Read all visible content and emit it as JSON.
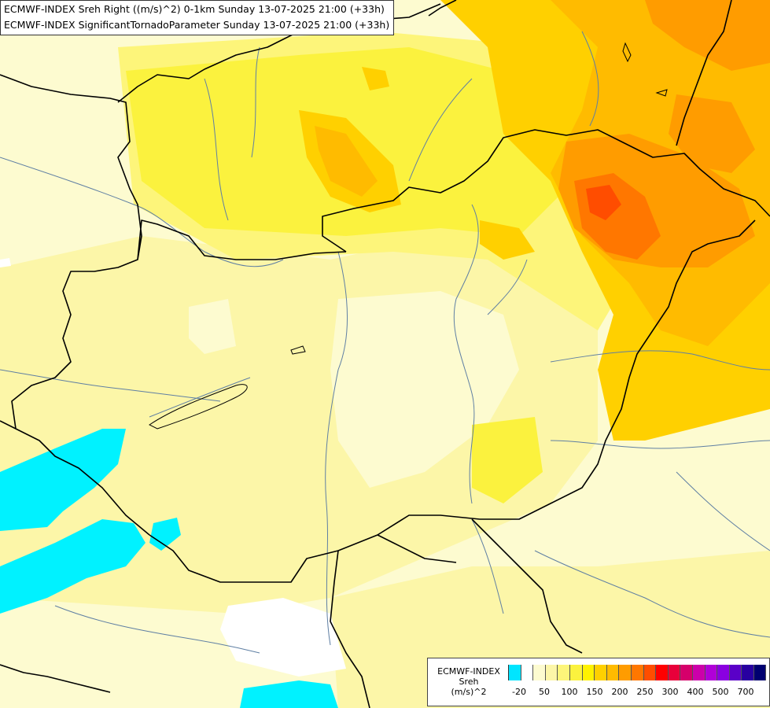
{
  "titles": {
    "line1": "ECMWF-INDEX Sreh Right ((m/s)^2) 0-1km Sunday 13-07-2025 21:00 (+33h)",
    "line2": "ECMWF-INDEX SignificantTornadoParameter Sunday 13-07-2025 21:00 (+33h)"
  },
  "legend": {
    "line1": "ECMWF-INDEX",
    "line2": "Sreh",
    "line3": "(m/s)^2",
    "colors": [
      "#00e5ff",
      "#ffffff",
      "#fdfbd0",
      "#fcf6a8",
      "#fdf57a",
      "#fbf23e",
      "#fff200",
      "#ffd000",
      "#ffbb00",
      "#ff9c00",
      "#ff7700",
      "#ff4d00",
      "#ff0000",
      "#e8003a",
      "#d6006b",
      "#cc00aa",
      "#b000d8",
      "#8a00e0",
      "#5a00c8",
      "#2800a0",
      "#000070"
    ],
    "ticks": [
      "-20",
      "50",
      "100",
      "150",
      "200",
      "250",
      "300",
      "400",
      "500",
      "700"
    ]
  },
  "colors": {
    "border": "#000000",
    "river": "#5f7fa3",
    "cyan": "#00f2ff"
  }
}
